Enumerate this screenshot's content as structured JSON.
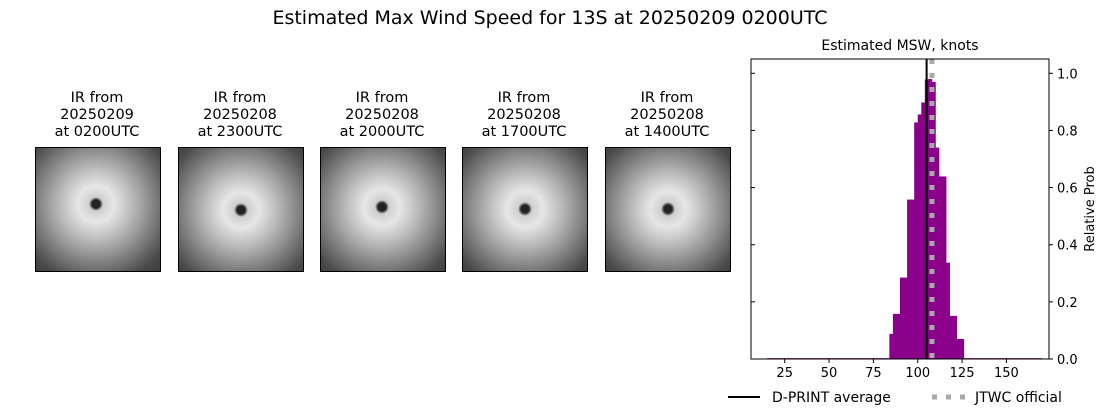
{
  "title": "Estimated Max Wind Speed for 13S at 20250209 0200UTC",
  "panels": [
    {
      "l1": "IR from",
      "l2": "20250209",
      "l3": "at 0200UTC"
    },
    {
      "l1": "IR from",
      "l2": "20250208",
      "l3": "at 2300UTC"
    },
    {
      "l1": "IR from",
      "l2": "20250208",
      "l3": "at 2000UTC"
    },
    {
      "l1": "IR from",
      "l2": "20250208",
      "l3": "at 1700UTC"
    },
    {
      "l1": "IR from",
      "l2": "20250208",
      "l3": "at 1400UTC"
    }
  ],
  "chart_data": {
    "type": "bar",
    "title": "Estimated MSW, knots",
    "ylabel": "Relative Prob",
    "xlim": [
      6,
      174
    ],
    "ylim": [
      0,
      1.05
    ],
    "xticks": [
      25,
      50,
      75,
      100,
      125,
      150
    ],
    "yticks": [
      0.0,
      0.2,
      0.4,
      0.6,
      0.8,
      1.0
    ],
    "bin_width": 2,
    "bin_starts": [
      84,
      86,
      88,
      90,
      92,
      94,
      96,
      98,
      100,
      102,
      104,
      106,
      108,
      110,
      112,
      114,
      116,
      118,
      120,
      122,
      124
    ],
    "values": [
      0.088,
      0.158,
      0.158,
      0.285,
      0.285,
      0.558,
      0.558,
      0.828,
      0.856,
      0.898,
      0.979,
      0.98,
      0.97,
      0.74,
      0.639,
      0.639,
      0.337,
      0.151,
      0.151,
      0.07,
      0.07
    ],
    "baseline_range": [
      15,
      170
    ],
    "baseline_value": 0.003,
    "bar_color": "#8b008b",
    "dprint_average": 105,
    "jtwc_official": 108,
    "legend": [
      {
        "label": "D-PRINT average",
        "color": "#000000",
        "style": "solid"
      },
      {
        "label": "JTWC official",
        "color": "#a9a9a9",
        "style": "dotted"
      }
    ],
    "legend_placement": "bottom"
  }
}
